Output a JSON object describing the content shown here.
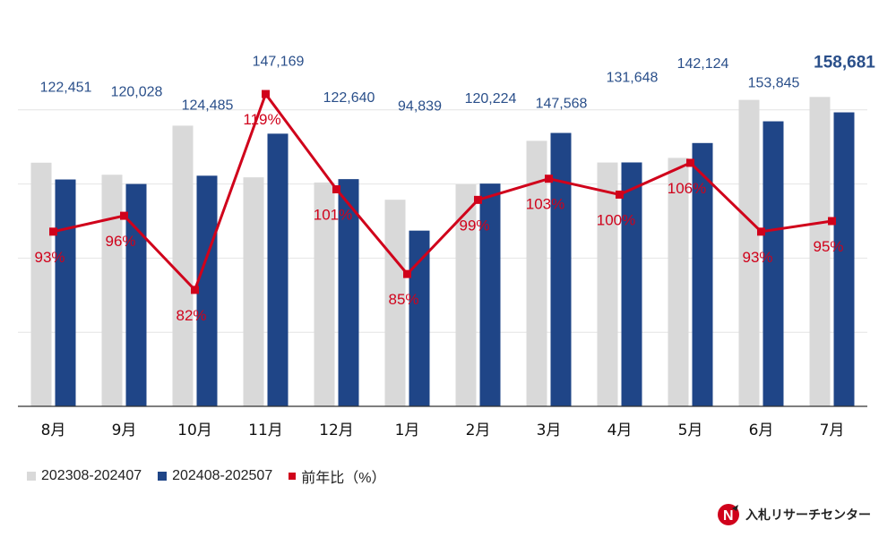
{
  "colors": {
    "series_prev": "#d9d9d9",
    "series_curr": "#1f4587",
    "ratio": "#d0021b",
    "grid": "#e4e4e4",
    "axis": "#333333"
  },
  "chart_data": {
    "type": "bar",
    "categories": [
      "8月",
      "9月",
      "10月",
      "11月",
      "12月",
      "1月",
      "2月",
      "3月",
      "4月",
      "5月",
      "6月",
      "7月"
    ],
    "series": [
      {
        "name": "202308-202407",
        "type": "bar",
        "values": [
          131500,
          125000,
          151500,
          123600,
          120800,
          111500,
          119800,
          143300,
          131600,
          134100,
          165400,
          167000
        ]
      },
      {
        "name": "202408-202507",
        "type": "bar",
        "values": [
          122451,
          120028,
          124485,
          147169,
          122640,
          94839,
          120224,
          147568,
          131648,
          142124,
          153845,
          158681
        ]
      },
      {
        "name": "前年比（%）",
        "type": "line",
        "axis": "secondary",
        "values": [
          93,
          96,
          82,
          119,
          101,
          85,
          99,
          103,
          100,
          106,
          93,
          95
        ]
      }
    ],
    "bar_value_labels": [
      "122,451",
      "120,028",
      "124,485",
      "147,169",
      "122,640",
      "94,839",
      "120,224",
      "147,568",
      "131,648",
      "142,124",
      "153,845",
      "158,681"
    ],
    "line_value_labels": [
      "93%",
      "96%",
      "82%",
      "119%",
      "101%",
      "85%",
      "99%",
      "103%",
      "100%",
      "106%",
      "93%",
      "95%"
    ],
    "ylim": [
      0,
      200000
    ],
    "y_gridlines": [
      0,
      40000,
      80000,
      120000,
      160000
    ],
    "y2lim": [
      60,
      130
    ],
    "legend_position": "bottom-left",
    "grid": true
  },
  "legend": {
    "items": [
      {
        "label": "202308-202407",
        "shape": "square"
      },
      {
        "label": "202408-202507",
        "shape": "square"
      },
      {
        "label": "前年比（%）",
        "shape": "small-square"
      }
    ]
  },
  "logo": {
    "text": "入札リサーチセンター",
    "icon": "nyusatsu-logo-icon"
  }
}
